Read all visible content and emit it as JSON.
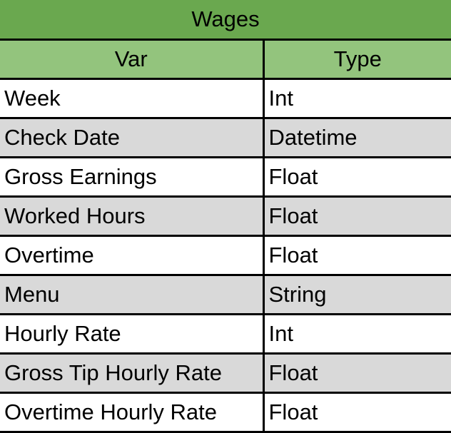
{
  "table": {
    "title": "Wages",
    "headers": {
      "var": "Var",
      "type": "Type"
    },
    "rows": [
      {
        "var": "Week",
        "type": "Int"
      },
      {
        "var": "Check Date",
        "type": "Datetime"
      },
      {
        "var": "Gross Earnings",
        "type": "Float"
      },
      {
        "var": "Worked Hours",
        "type": "Float"
      },
      {
        "var": "Overtime",
        "type": "Float"
      },
      {
        "var": "Menu",
        "type": "String"
      },
      {
        "var": "Hourly Rate",
        "type": "Int"
      },
      {
        "var": "Gross Tip Hourly Rate",
        "type": "Float"
      },
      {
        "var": "Overtime Hourly Rate",
        "type": "Float"
      }
    ]
  },
  "colors": {
    "title_bg": "#6aa84f",
    "header_bg": "#93c47d",
    "shaded_row_bg": "#d9d9d9",
    "plain_row_bg": "#ffffff"
  }
}
